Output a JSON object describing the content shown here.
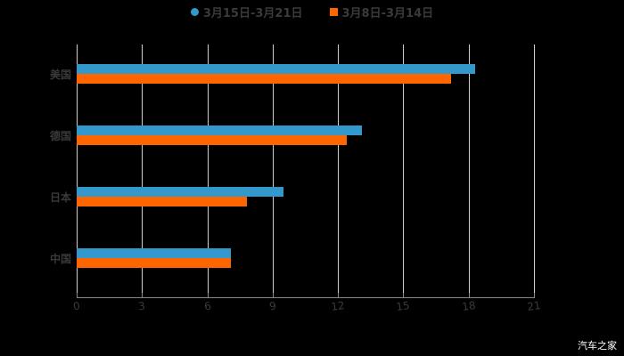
{
  "chart_data": {
    "type": "bar",
    "orientation": "horizontal",
    "title": "",
    "categories": [
      "美国",
      "德国",
      "日本",
      "中国"
    ],
    "series": [
      {
        "name": "3月15日-3月21日",
        "color": "#3399cc",
        "values": [
          18.3,
          13.1,
          9.5,
          7.1
        ]
      },
      {
        "name": "3月8日-3月14日",
        "color": "#ff6600",
        "values": [
          17.2,
          12.4,
          7.8,
          7.1
        ]
      }
    ],
    "xlabel": "",
    "ylabel": "",
    "xlim": [
      0,
      21
    ],
    "xticks": [
      "0",
      "3",
      "6",
      "9",
      "12",
      "15",
      "18",
      "21"
    ],
    "grid": true,
    "legend_position": "top"
  },
  "legend": {
    "series1": "3月15日-3月21日",
    "series2": "3月8日-3月14日"
  },
  "watermark": "汽车之家"
}
